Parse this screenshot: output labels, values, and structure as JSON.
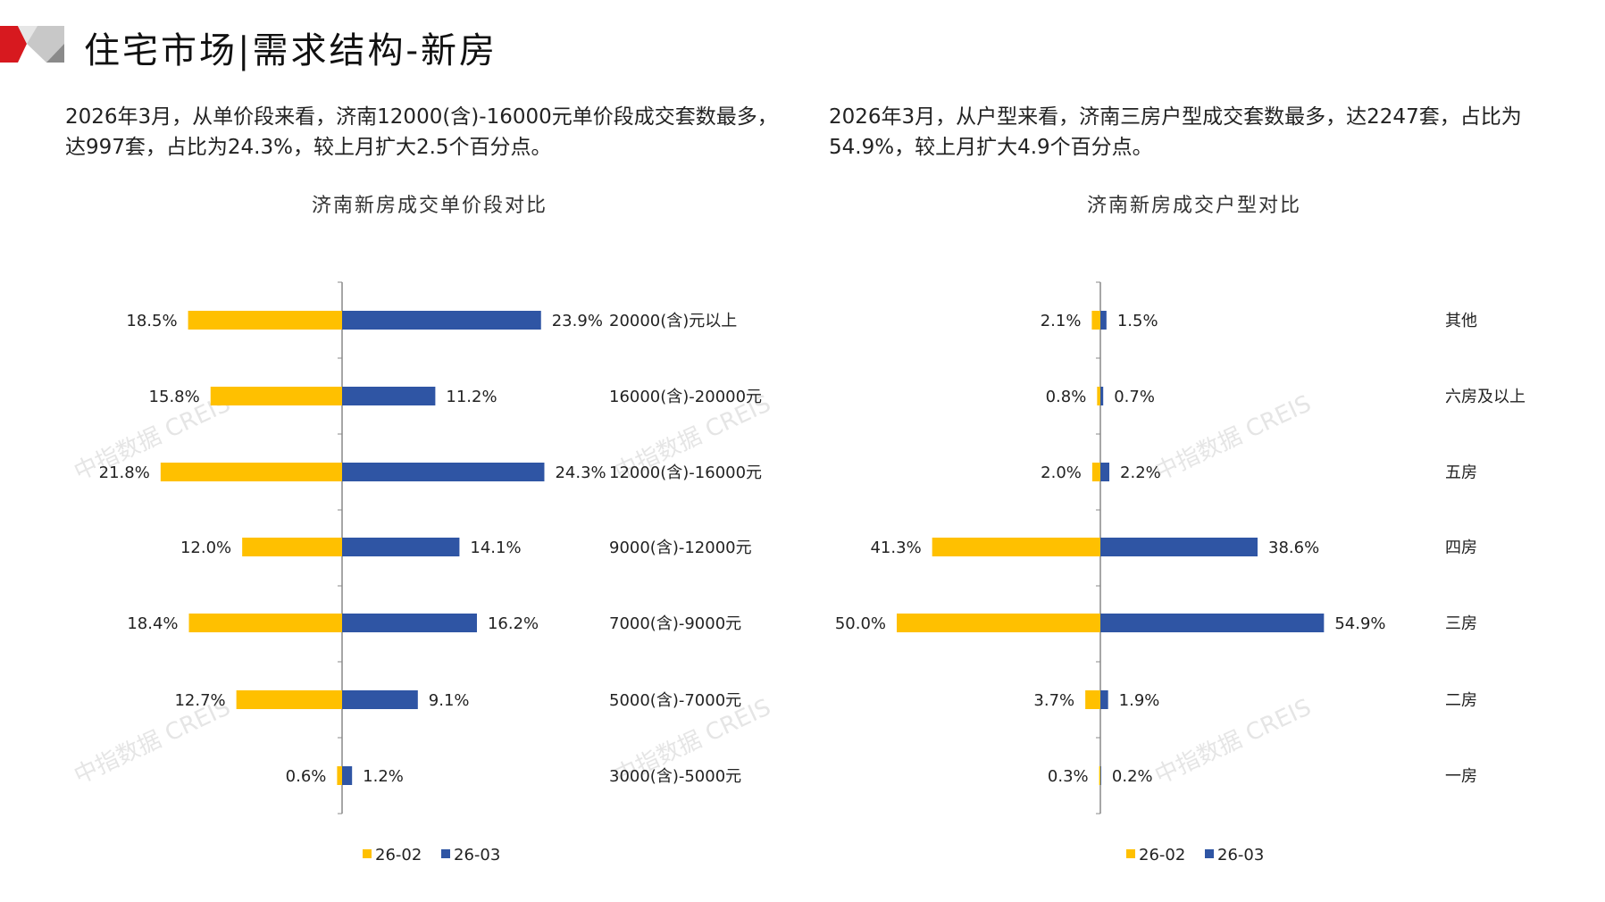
{
  "header": {
    "title": "住宅市场|需求结构-新房"
  },
  "watermark": "中指数据 CREIS",
  "left_text": "2026年3月，从单价段来看，济南12000(含)-16000元单价段成交套数最多，达997套，占比为24.3%，较上月扩大2.5个百分点。",
  "right_text": "2026年3月，从户型来看，济南三房户型成交套数最多，达2247套，占比为54.9%，较上月扩大4.9个百分点。",
  "colors": {
    "s1": "#FFC000",
    "s2": "#2F55A4",
    "axis": "#888888"
  },
  "chart_data": [
    {
      "type": "bar",
      "orientation": "horizontal-butterfly",
      "title": "济南新房成交单价段对比",
      "categories": [
        "20000(含)元以上",
        "16000(含)-20000元",
        "12000(含)-16000元",
        "9000(含)-12000元",
        "7000(含)-9000元",
        "5000(含)-7000元",
        "3000(含)-5000元"
      ],
      "series": [
        {
          "name": "26-02",
          "values": [
            18.5,
            15.8,
            21.8,
            12.0,
            18.4,
            12.7,
            0.6
          ],
          "labels": [
            "18.5%",
            "15.8%",
            "21.8%",
            "12.0%",
            "18.4%",
            "12.7%",
            "0.6%"
          ]
        },
        {
          "name": "26-03",
          "values": [
            23.9,
            11.2,
            24.3,
            14.1,
            16.2,
            9.1,
            1.2
          ],
          "labels": [
            "23.9%",
            "11.2%",
            "24.3%",
            "14.1%",
            "16.2%",
            "9.1%",
            "1.2%"
          ]
        }
      ],
      "unit": "%",
      "legend": "bottom"
    },
    {
      "type": "bar",
      "orientation": "horizontal-butterfly",
      "title": "济南新房成交户型对比",
      "categories": [
        "其他",
        "六房及以上",
        "五房",
        "四房",
        "三房",
        "二房",
        "一房"
      ],
      "series": [
        {
          "name": "26-02",
          "values": [
            2.1,
            0.8,
            2.0,
            41.3,
            50.0,
            3.7,
            0.3
          ],
          "labels": [
            "2.1%",
            "0.8%",
            "2.0%",
            "41.3%",
            "50.0%",
            "3.7%",
            "0.3%"
          ]
        },
        {
          "name": "26-03",
          "values": [
            1.5,
            0.7,
            2.2,
            38.6,
            54.9,
            1.9,
            0.2
          ],
          "labels": [
            "1.5%",
            "0.7%",
            "2.2%",
            "38.6%",
            "54.9%",
            "1.9%",
            "0.2%"
          ]
        }
      ],
      "unit": "%",
      "legend": "bottom"
    }
  ]
}
